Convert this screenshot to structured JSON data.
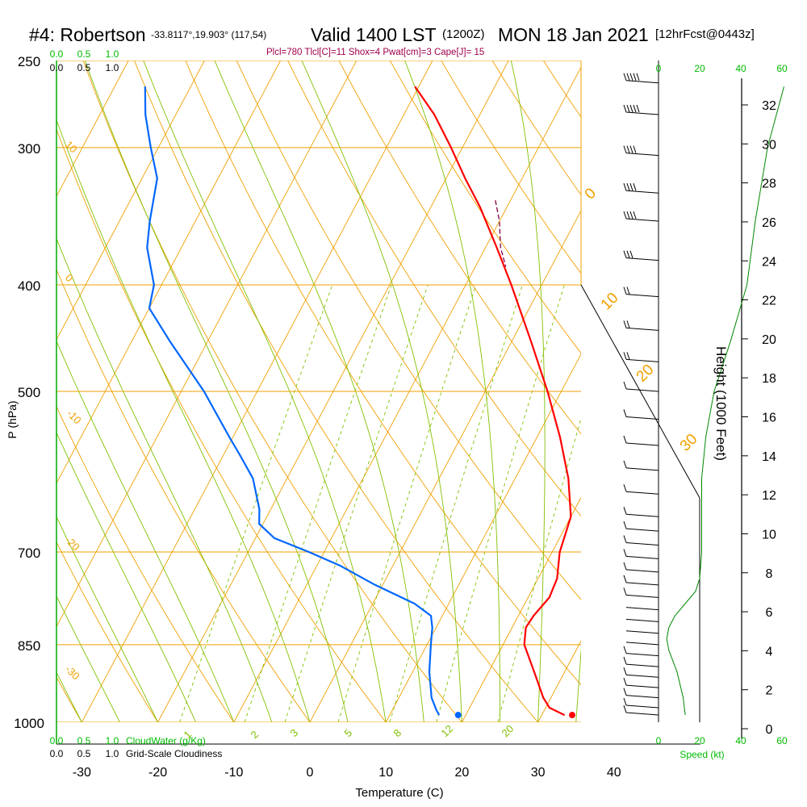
{
  "header": {
    "station": "#4: Robertson",
    "coords": "-33.8117°,19.903° (117,54)",
    "valid": "Valid 1400 LST",
    "utc": "(1200Z)",
    "date": "MON 18 Jan 2021",
    "forecast": "[12hrFcst@0443z]"
  },
  "stats_line": "Plcl=780 Tlcl[C]=11 Shox=4 Pwat[cm]=3 Cape[J]= 15",
  "chart_data": {
    "type": "skew-t",
    "xlabel": "Temperature (C)",
    "ylabel": "P (hPa)",
    "right_axis_label": "Height (1000 Feet)",
    "x_ticks": [
      -30,
      -20,
      -10,
      0,
      10,
      20,
      30,
      40
    ],
    "pressure_ticks": [
      250,
      300,
      400,
      500,
      700,
      850,
      1000
    ],
    "height_ticks": [
      0,
      2,
      4,
      6,
      8,
      10,
      12,
      14,
      16,
      18,
      20,
      22,
      24,
      26,
      28,
      30,
      32
    ],
    "speed_ticks": [
      0,
      20,
      40,
      60
    ],
    "speed_label": "Speed (kt)",
    "cloud_scale_ticks": [
      "0.0",
      "0.5",
      "1.0"
    ],
    "cloudwater_label": "CloudWater (g/Kg)",
    "cloudiness_label": "Grid-Scale Cloudiness",
    "dry_adiabat_labels": [
      "10",
      "0",
      "-10",
      "-20",
      "-30"
    ],
    "moist_adiabat_labels": [
      "0",
      "10",
      "20",
      "30"
    ],
    "mixing_ratio_labels": [
      "1",
      "2",
      "3",
      "5",
      "8",
      "12",
      "20"
    ],
    "temperature_profile": [
      {
        "p": 985,
        "t": 33.0
      },
      {
        "p": 970,
        "t": 30.5
      },
      {
        "p": 950,
        "t": 29.0
      },
      {
        "p": 900,
        "t": 26.0
      },
      {
        "p": 850,
        "t": 22.8
      },
      {
        "p": 820,
        "t": 21.8
      },
      {
        "p": 800,
        "t": 22.0
      },
      {
        "p": 770,
        "t": 22.8
      },
      {
        "p": 740,
        "t": 22.5
      },
      {
        "p": 700,
        "t": 21.0
      },
      {
        "p": 680,
        "t": 20.6
      },
      {
        "p": 650,
        "t": 20.0
      },
      {
        "p": 600,
        "t": 17.0
      },
      {
        "p": 550,
        "t": 13.0
      },
      {
        "p": 500,
        "t": 8.2
      },
      {
        "p": 450,
        "t": 2.5
      },
      {
        "p": 400,
        "t": -4.0
      },
      {
        "p": 370,
        "t": -8.5
      },
      {
        "p": 340,
        "t": -13.5
      },
      {
        "p": 320,
        "t": -17.5
      },
      {
        "p": 300,
        "t": -21.5
      },
      {
        "p": 280,
        "t": -26.0
      },
      {
        "p": 264,
        "t": -30.5
      }
    ],
    "dewpoint_profile": [
      {
        "p": 985,
        "t": 16.5
      },
      {
        "p": 975,
        "t": 15.8
      },
      {
        "p": 950,
        "t": 14.3
      },
      {
        "p": 900,
        "t": 12.2
      },
      {
        "p": 850,
        "t": 10.5
      },
      {
        "p": 820,
        "t": 9.5
      },
      {
        "p": 800,
        "t": 8.5
      },
      {
        "p": 780,
        "t": 5.5
      },
      {
        "p": 750,
        "t": -1.0
      },
      {
        "p": 720,
        "t": -7.0
      },
      {
        "p": 700,
        "t": -12.0
      },
      {
        "p": 680,
        "t": -17.5
      },
      {
        "p": 660,
        "t": -20.5
      },
      {
        "p": 640,
        "t": -21.5
      },
      {
        "p": 600,
        "t": -24.5
      },
      {
        "p": 570,
        "t": -28.0
      },
      {
        "p": 550,
        "t": -30.5
      },
      {
        "p": 500,
        "t": -37.0
      },
      {
        "p": 450,
        "t": -45.0
      },
      {
        "p": 420,
        "t": -50.0
      },
      {
        "p": 400,
        "t": -51.0
      },
      {
        "p": 370,
        "t": -54.5
      },
      {
        "p": 350,
        "t": -56.0
      },
      {
        "p": 320,
        "t": -58.0
      },
      {
        "p": 300,
        "t": -61.0
      },
      {
        "p": 280,
        "t": -64.0
      },
      {
        "p": 264,
        "t": -66.0
      }
    ],
    "parcel_profile": [
      {
        "p": 335,
        "t": -12.0
      },
      {
        "p": 350,
        "t": -10.0
      },
      {
        "p": 370,
        "t": -8.0
      },
      {
        "p": 385,
        "t": -6.0
      }
    ],
    "surface_temperature": 34.0,
    "surface_dewpoint": 19.0,
    "surface_marker_pressure": 985,
    "winds": [
      {
        "p": 985,
        "speed_kt": 13
      },
      {
        "p": 970,
        "speed_kt": 13
      },
      {
        "p": 950,
        "speed_kt": 12
      },
      {
        "p": 930,
        "speed_kt": 11
      },
      {
        "p": 910,
        "speed_kt": 10
      },
      {
        "p": 890,
        "speed_kt": 8
      },
      {
        "p": 870,
        "speed_kt": 6
      },
      {
        "p": 850,
        "speed_kt": 4
      },
      {
        "p": 830,
        "speed_kt": 3
      },
      {
        "p": 810,
        "speed_kt": 3
      },
      {
        "p": 790,
        "speed_kt": 4
      },
      {
        "p": 770,
        "speed_kt": 6
      },
      {
        "p": 750,
        "speed_kt": 9
      },
      {
        "p": 730,
        "speed_kt": 12
      },
      {
        "p": 710,
        "speed_kt": 13
      },
      {
        "p": 690,
        "speed_kt": 13
      },
      {
        "p": 670,
        "speed_kt": 13
      },
      {
        "p": 650,
        "speed_kt": 13
      },
      {
        "p": 620,
        "speed_kt": 13
      },
      {
        "p": 590,
        "speed_kt": 13
      },
      {
        "p": 560,
        "speed_kt": 13
      },
      {
        "p": 530,
        "speed_kt": 13
      },
      {
        "p": 500,
        "speed_kt": 14
      },
      {
        "p": 470,
        "speed_kt": 16
      },
      {
        "p": 440,
        "speed_kt": 18
      },
      {
        "p": 410,
        "speed_kt": 22
      },
      {
        "p": 380,
        "speed_kt": 28
      },
      {
        "p": 350,
        "speed_kt": 35
      },
      {
        "p": 330,
        "speed_kt": 38
      },
      {
        "p": 305,
        "speed_kt": 42
      },
      {
        "p": 280,
        "speed_kt": 50
      },
      {
        "p": 262,
        "speed_kt": 55
      }
    ],
    "speed_profile": [
      {
        "p": 985,
        "speed_kt": 13
      },
      {
        "p": 950,
        "speed_kt": 12
      },
      {
        "p": 900,
        "speed_kt": 9
      },
      {
        "p": 860,
        "speed_kt": 5
      },
      {
        "p": 840,
        "speed_kt": 4
      },
      {
        "p": 820,
        "speed_kt": 5
      },
      {
        "p": 800,
        "speed_kt": 8
      },
      {
        "p": 780,
        "speed_kt": 13
      },
      {
        "p": 760,
        "speed_kt": 18
      },
      {
        "p": 740,
        "speed_kt": 20
      },
      {
        "p": 700,
        "speed_kt": 21
      },
      {
        "p": 650,
        "speed_kt": 21
      },
      {
        "p": 600,
        "speed_kt": 21
      },
      {
        "p": 550,
        "speed_kt": 23
      },
      {
        "p": 500,
        "speed_kt": 27
      },
      {
        "p": 450,
        "speed_kt": 35
      },
      {
        "p": 400,
        "speed_kt": 43
      },
      {
        "p": 350,
        "speed_kt": 47
      },
      {
        "p": 300,
        "speed_kt": 53
      },
      {
        "p": 264,
        "speed_kt": 61
      }
    ],
    "colors": {
      "isotherm": "#f0a000",
      "dry_adiabat": "#f0a000",
      "moist_adiabat": "#80c000",
      "mixing_ratio": "#80c000",
      "temperature": "#ff0000",
      "dewpoint": "#0066ff",
      "parcel": "#800040",
      "speed": "#008800",
      "scale_green": "#00bb00",
      "stats": "#a0004a"
    }
  }
}
